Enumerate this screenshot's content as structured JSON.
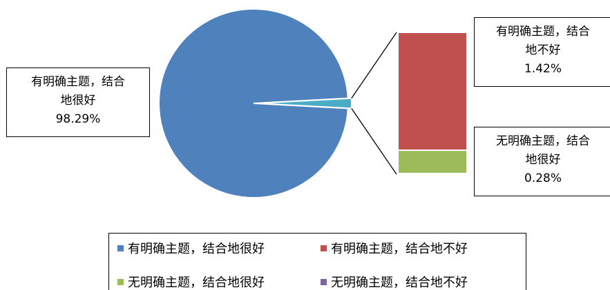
{
  "chart_data": {
    "type": "bar-of-pie",
    "title": "",
    "categories": [
      "有明确主题，结合地很好",
      "有明确主题，结合地不好",
      "无明确主题，结合地很好",
      "无明确主题，结合地不好"
    ],
    "values": [
      98.29,
      1.42,
      0.28,
      0.01
    ],
    "unit": "%",
    "colors": [
      "#4f81bd",
      "#c0504d",
      "#9bbb59",
      "#8064a2"
    ],
    "other_slice_color": "#4bacc6",
    "split": {
      "pie": [
        "有明确主题，结合地很好"
      ],
      "bar": [
        "有明确主题，结合地不好",
        "无明确主题，结合地很好",
        "无明确主题，结合地不好"
      ]
    },
    "data_labels": [
      {
        "line1": "有明确主题，结合",
        "line2": "地很好",
        "pct": "98.29%"
      },
      {
        "line1": "有明确主题，结合",
        "line2": "地不好",
        "pct": "1.42%"
      },
      {
        "line1": "无明确主题，结合",
        "line2": "地很好",
        "pct": "0.28%"
      }
    ],
    "legend": {
      "position": "bottom",
      "items": [
        "有明确主题，结合地很好",
        "有明确主题，结合地不好",
        "无明确主题，结合地很好",
        "无明确主题，结合地不好"
      ]
    }
  }
}
